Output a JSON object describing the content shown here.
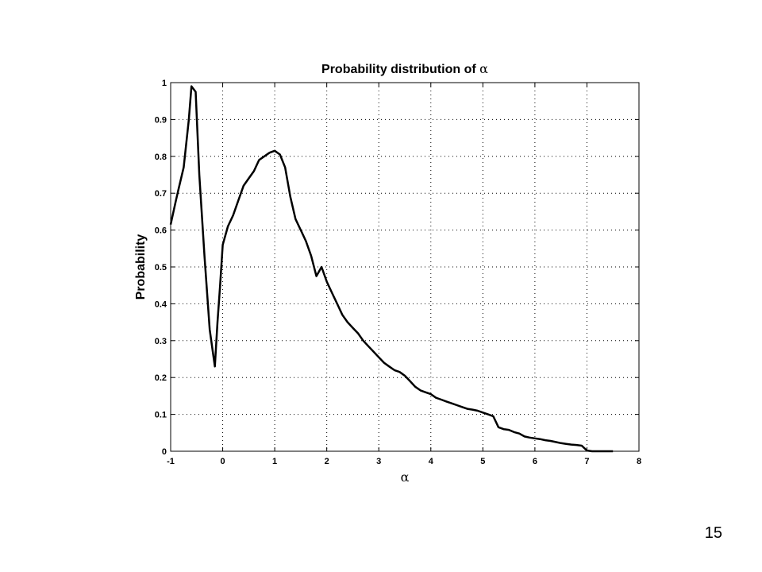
{
  "chart_data": {
    "type": "line",
    "title": "Probability distribution of α",
    "xlabel": "α",
    "ylabel": "Probability",
    "xlim": [
      -1,
      8
    ],
    "ylim": [
      0,
      1
    ],
    "xticks": [
      "-1",
      "0",
      "1",
      "2",
      "3",
      "4",
      "5",
      "6",
      "7",
      "8"
    ],
    "yticks": [
      "0",
      "0.1",
      "0.2",
      "0.3",
      "0.4",
      "0.5",
      "0.6",
      "0.7",
      "0.8",
      "0.9",
      "1"
    ],
    "grid": true,
    "x": [
      -1.0,
      -0.9,
      -0.85,
      -0.75,
      -0.65,
      -0.6,
      -0.52,
      -0.45,
      -0.35,
      -0.25,
      -0.15,
      -0.1,
      -0.05,
      0.0,
      0.1,
      0.2,
      0.3,
      0.4,
      0.5,
      0.6,
      0.7,
      0.8,
      0.9,
      1.0,
      1.1,
      1.2,
      1.3,
      1.4,
      1.5,
      1.6,
      1.7,
      1.8,
      1.9,
      2.0,
      2.1,
      2.2,
      2.3,
      2.4,
      2.5,
      2.6,
      2.7,
      2.8,
      2.9,
      3.0,
      3.1,
      3.2,
      3.3,
      3.4,
      3.5,
      3.6,
      3.7,
      3.8,
      3.9,
      4.0,
      4.1,
      4.2,
      4.3,
      4.4,
      4.5,
      4.6,
      4.7,
      4.8,
      4.9,
      5.0,
      5.1,
      5.2,
      5.3,
      5.4,
      5.5,
      5.6,
      5.7,
      5.8,
      5.9,
      6.0,
      6.1,
      6.2,
      6.3,
      6.4,
      6.5,
      6.6,
      6.7,
      6.8,
      6.9,
      7.0,
      7.1,
      7.2,
      7.3,
      7.4,
      7.5
    ],
    "series": [
      {
        "values": [
          0.615,
          0.68,
          0.71,
          0.77,
          0.9,
          0.99,
          0.975,
          0.75,
          0.53,
          0.33,
          0.23,
          0.35,
          0.45,
          0.56,
          0.61,
          0.64,
          0.68,
          0.72,
          0.74,
          0.76,
          0.79,
          0.8,
          0.81,
          0.815,
          0.805,
          0.77,
          0.69,
          0.63,
          0.6,
          0.57,
          0.53,
          0.475,
          0.5,
          0.46,
          0.43,
          0.4,
          0.37,
          0.35,
          0.335,
          0.32,
          0.3,
          0.285,
          0.27,
          0.255,
          0.24,
          0.23,
          0.22,
          0.215,
          0.205,
          0.19,
          0.175,
          0.165,
          0.16,
          0.155,
          0.145,
          0.14,
          0.135,
          0.13,
          0.125,
          0.12,
          0.115,
          0.113,
          0.11,
          0.105,
          0.1,
          0.095,
          0.065,
          0.06,
          0.058,
          0.052,
          0.048,
          0.04,
          0.037,
          0.035,
          0.033,
          0.03,
          0.028,
          0.025,
          0.022,
          0.02,
          0.018,
          0.017,
          0.015,
          0.002,
          0.0,
          0.0,
          0.0,
          0.0,
          0.0
        ]
      }
    ]
  },
  "page_number": "15"
}
